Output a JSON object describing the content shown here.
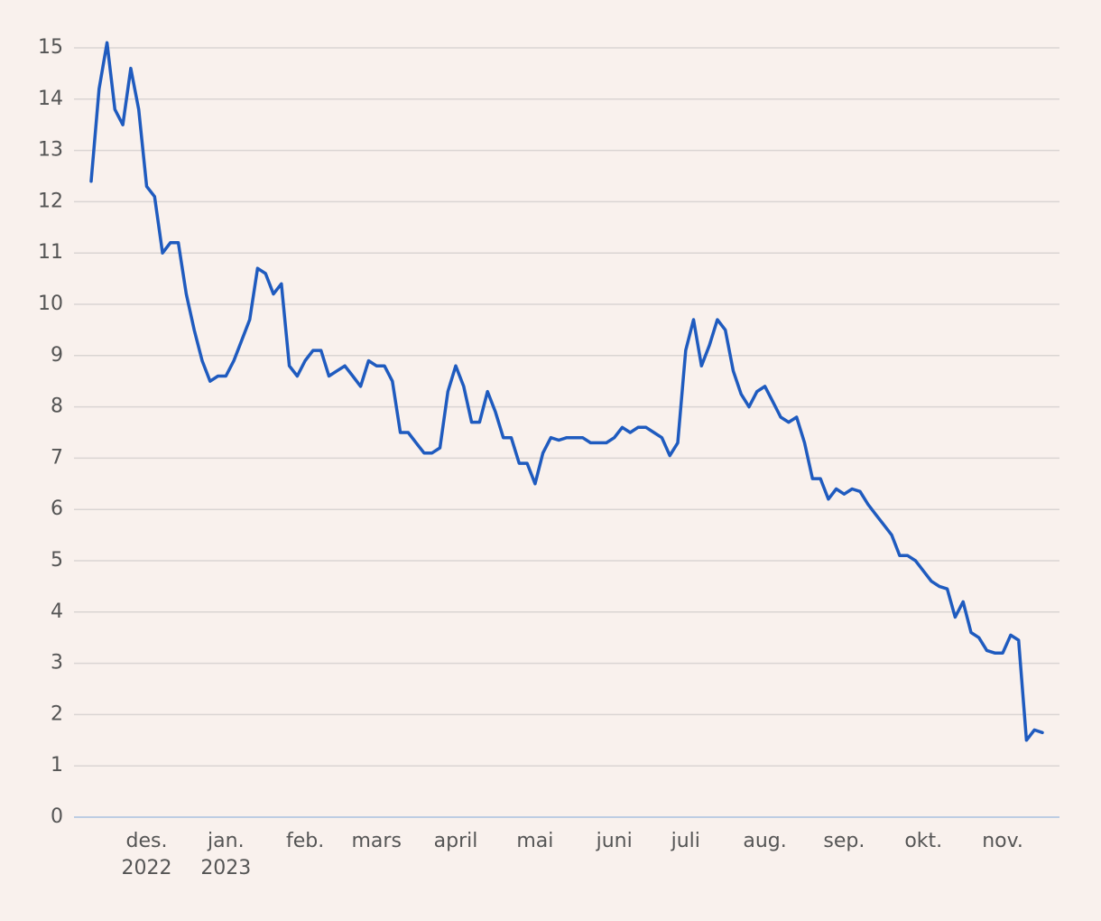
{
  "chart_data": {
    "type": "line",
    "categories": [
      null,
      null,
      null,
      null,
      null,
      null,
      null,
      "des.\n2022",
      null,
      null,
      null,
      null,
      null,
      null,
      null,
      null,
      null,
      "jan.\n2023",
      null,
      null,
      null,
      null,
      null,
      null,
      null,
      null,
      null,
      "feb.",
      null,
      null,
      null,
      null,
      null,
      null,
      null,
      null,
      "mars",
      null,
      null,
      null,
      null,
      null,
      null,
      null,
      null,
      null,
      "april",
      null,
      null,
      null,
      null,
      null,
      null,
      null,
      null,
      null,
      "mai",
      null,
      null,
      null,
      null,
      null,
      null,
      null,
      null,
      null,
      "juni",
      null,
      null,
      null,
      null,
      null,
      null,
      null,
      null,
      "juli",
      null,
      null,
      null,
      null,
      null,
      null,
      null,
      null,
      null,
      "aug.",
      null,
      null,
      null,
      null,
      null,
      null,
      null,
      null,
      null,
      "sep.",
      null,
      null,
      null,
      null,
      null,
      null,
      null,
      null,
      null,
      "okt.",
      null,
      null,
      null,
      null,
      null,
      null,
      null,
      null,
      null,
      "nov.",
      null,
      null,
      null,
      null,
      null
    ],
    "values": [
      12.4,
      14.2,
      15.1,
      13.8,
      13.5,
      14.6,
      13.8,
      12.3,
      12.1,
      11.0,
      11.2,
      11.2,
      10.2,
      9.5,
      8.9,
      8.5,
      8.6,
      8.6,
      8.9,
      9.3,
      9.7,
      10.7,
      10.6,
      10.2,
      10.4,
      8.8,
      8.6,
      8.9,
      9.1,
      9.1,
      8.6,
      8.7,
      8.8,
      8.6,
      8.4,
      8.9,
      8.8,
      8.8,
      8.5,
      7.5,
      7.5,
      7.3,
      7.1,
      7.1,
      7.2,
      8.3,
      8.8,
      8.4,
      7.7,
      7.7,
      8.3,
      7.9,
      7.4,
      7.4,
      6.9,
      6.9,
      6.5,
      7.1,
      7.4,
      7.35,
      7.4,
      7.4,
      7.4,
      7.3,
      7.3,
      7.3,
      7.4,
      7.6,
      7.5,
      7.6,
      7.6,
      7.5,
      7.4,
      7.05,
      7.3,
      9.1,
      9.7,
      8.8,
      9.2,
      9.7,
      9.5,
      8.7,
      8.25,
      8.0,
      8.3,
      8.4,
      8.1,
      7.8,
      7.7,
      7.8,
      7.3,
      6.6,
      6.6,
      6.2,
      6.4,
      6.3,
      6.4,
      6.35,
      6.1,
      5.9,
      5.7,
      5.5,
      5.1,
      5.1,
      5.0,
      4.8,
      4.6,
      4.5,
      4.45,
      3.9,
      4.2,
      3.6,
      3.5,
      3.25,
      3.2,
      3.2,
      3.55,
      3.45,
      1.5,
      1.7,
      1.65
    ],
    "color": "#1f5bbf",
    "ylim": [
      0,
      15
    ],
    "yticks": [
      0,
      1,
      2,
      3,
      4,
      5,
      6,
      7,
      8,
      9,
      10,
      11,
      12,
      13,
      14,
      15
    ],
    "grid": true
  }
}
